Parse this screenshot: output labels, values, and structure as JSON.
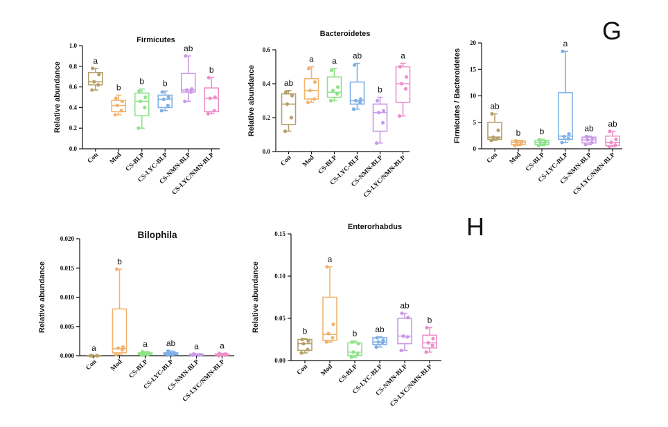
{
  "panel_labels": [
    "G",
    "H"
  ],
  "group_colors": [
    "#b5a16a",
    "#f2b36f",
    "#8fe38a",
    "#7fb0e6",
    "#c99ae6",
    "#ee8fc9"
  ],
  "chart_data": [
    {
      "type": "box",
      "title": "Firmicutes",
      "ylabel": "Relative abundance",
      "ylim": [
        0,
        1.0
      ],
      "yticks": [
        "0.0",
        "0.2",
        "0.4",
        "0.6",
        "0.8",
        "1.0"
      ],
      "categories": [
        "Con",
        "Mod",
        "CS-BLP",
        "CS-LYC-BLP",
        "CS-NMN-BLP",
        "CS-LYC/NMN-BLP"
      ],
      "significance": [
        "a",
        "b",
        "b",
        "b",
        "ab",
        "b"
      ],
      "boxes": [
        {
          "min": 0.57,
          "q1": 0.62,
          "median": 0.65,
          "q3": 0.74,
          "max": 0.78,
          "points": [
            0.57,
            0.62,
            0.65,
            0.72,
            0.78
          ]
        },
        {
          "min": 0.33,
          "q1": 0.36,
          "median": 0.42,
          "q3": 0.47,
          "max": 0.52,
          "points": [
            0.33,
            0.37,
            0.42,
            0.46,
            0.49
          ]
        },
        {
          "min": 0.2,
          "q1": 0.32,
          "median": 0.46,
          "q3": 0.54,
          "max": 0.58,
          "points": [
            0.2,
            0.4,
            0.46,
            0.5,
            0.56
          ]
        },
        {
          "min": 0.37,
          "q1": 0.4,
          "median": 0.48,
          "q3": 0.52,
          "max": 0.56,
          "points": [
            0.37,
            0.42,
            0.48,
            0.5,
            0.55
          ]
        },
        {
          "min": 0.46,
          "q1": 0.55,
          "median": 0.57,
          "q3": 0.73,
          "max": 0.9,
          "points": [
            0.46,
            0.55,
            0.57,
            0.58,
            0.9
          ]
        },
        {
          "min": 0.34,
          "q1": 0.36,
          "median": 0.49,
          "q3": 0.59,
          "max": 0.69,
          "points": [
            0.34,
            0.37,
            0.49,
            0.5,
            0.69
          ]
        }
      ]
    },
    {
      "type": "box",
      "title": "Bacteroidetes",
      "ylabel": "Relative abundance",
      "ylim": [
        0,
        0.6
      ],
      "yticks": [
        "0.0",
        "0.2",
        "0.4",
        "0.6"
      ],
      "categories": [
        "Con",
        "Mod",
        "CS-BLP",
        "CS-LYC-BLP",
        "CS-NMN-BLP",
        "CS-LYC/NMN-BLP"
      ],
      "significance": [
        "ab",
        "a",
        "a",
        "ab",
        "b",
        "a"
      ],
      "boxes": [
        {
          "min": 0.12,
          "q1": 0.16,
          "median": 0.28,
          "q3": 0.34,
          "max": 0.36,
          "points": [
            0.12,
            0.2,
            0.28,
            0.33,
            0.35
          ]
        },
        {
          "min": 0.29,
          "q1": 0.31,
          "median": 0.36,
          "q3": 0.43,
          "max": 0.5,
          "points": [
            0.29,
            0.31,
            0.36,
            0.41,
            0.49
          ]
        },
        {
          "min": 0.3,
          "q1": 0.32,
          "median": 0.35,
          "q3": 0.44,
          "max": 0.49,
          "points": [
            0.3,
            0.34,
            0.36,
            0.38,
            0.48
          ]
        },
        {
          "min": 0.25,
          "q1": 0.28,
          "median": 0.3,
          "q3": 0.41,
          "max": 0.52,
          "points": [
            0.25,
            0.29,
            0.3,
            0.31,
            0.51
          ]
        },
        {
          "min": 0.05,
          "q1": 0.12,
          "median": 0.23,
          "q3": 0.28,
          "max": 0.32,
          "points": [
            0.05,
            0.17,
            0.23,
            0.24,
            0.3
          ]
        },
        {
          "min": 0.21,
          "q1": 0.29,
          "median": 0.4,
          "q3": 0.5,
          "max": 0.52,
          "points": [
            0.21,
            0.37,
            0.4,
            0.44,
            0.5
          ]
        }
      ]
    },
    {
      "type": "box",
      "title": "",
      "ylabel": "Firmicutes / Bacteroidetes",
      "ylim": [
        0,
        20
      ],
      "yticks": [
        "0",
        "5",
        "10",
        "15",
        "20"
      ],
      "categories": [
        "Con",
        "Mod",
        "CS-BLP",
        "CS-LYC-BLP",
        "CS-NMN-BLP",
        "CS-LYC/NMN-BLP"
      ],
      "significance": [
        "ab",
        "b",
        "b",
        "a",
        "ab",
        "ab"
      ],
      "boxes": [
        {
          "min": 1.6,
          "q1": 1.8,
          "median": 2.2,
          "q3": 5.0,
          "max": 6.6,
          "points": [
            1.6,
            2.0,
            2.2,
            3.5,
            6.6
          ]
        },
        {
          "min": 0.6,
          "q1": 0.8,
          "median": 1.2,
          "q3": 1.5,
          "max": 1.6,
          "points": [
            0.6,
            0.9,
            1.2,
            1.4,
            1.5
          ]
        },
        {
          "min": 0.6,
          "q1": 0.8,
          "median": 1.2,
          "q3": 1.6,
          "max": 1.8,
          "points": [
            0.6,
            0.9,
            1.2,
            1.4,
            1.7
          ]
        },
        {
          "min": 1.2,
          "q1": 1.8,
          "median": 2.4,
          "q3": 10.6,
          "max": 18.4,
          "points": [
            1.2,
            1.9,
            2.3,
            2.8,
            18.4
          ]
        },
        {
          "min": 0.8,
          "q1": 1.1,
          "median": 1.7,
          "q3": 2.2,
          "max": 2.4,
          "points": [
            0.8,
            1.2,
            1.7,
            1.9,
            2.3
          ]
        },
        {
          "min": 0.4,
          "q1": 0.6,
          "median": 1.2,
          "q3": 2.4,
          "max": 3.3,
          "points": [
            0.4,
            0.7,
            1.2,
            1.8,
            3.3
          ]
        }
      ]
    },
    {
      "type": "box",
      "title": "Bilophila",
      "ylabel": "Relative abundance",
      "ylim": [
        0,
        0.02
      ],
      "yticks": [
        "0.000",
        "0.005",
        "0.010",
        "0.015",
        "0.020"
      ],
      "categories": [
        "Con",
        "Mod",
        "CS-BLP",
        "CS-LYC-BLP",
        "CS-NMN-BLP",
        "CS-LYC/NMN-BLP"
      ],
      "significance": [
        "a",
        "b",
        "a",
        "ab",
        "a",
        "a"
      ],
      "boxes": [
        {
          "min": 0.0,
          "q1": 0.0,
          "median": 0.0,
          "q3": 0.0,
          "max": 0.0,
          "points": [
            0.0,
            0.0,
            0.0,
            0.0,
            0.0
          ]
        },
        {
          "min": 0.0002,
          "q1": 0.0005,
          "median": 0.0012,
          "q3": 0.008,
          "max": 0.0148,
          "points": [
            0.0002,
            0.001,
            0.0013,
            0.0015,
            0.0148
          ]
        },
        {
          "min": 0.0001,
          "q1": 0.0002,
          "median": 0.0003,
          "q3": 0.0005,
          "max": 0.0007,
          "points": [
            0.0001,
            0.0002,
            0.0003,
            0.0005,
            0.0007
          ]
        },
        {
          "min": 0.0001,
          "q1": 0.0002,
          "median": 0.0004,
          "q3": 0.0005,
          "max": 0.0008,
          "points": [
            0.0001,
            0.0003,
            0.0004,
            0.0005,
            0.0008
          ]
        },
        {
          "min": 0.0001,
          "q1": 0.0001,
          "median": 0.0002,
          "q3": 0.0003,
          "max": 0.0003,
          "points": [
            0.0001,
            0.0001,
            0.0002,
            0.0002,
            0.0003
          ]
        },
        {
          "min": 0.0,
          "q1": 0.0001,
          "median": 0.0002,
          "q3": 0.0003,
          "max": 0.0004,
          "points": [
            0.0,
            0.0001,
            0.0002,
            0.0003,
            0.0004
          ]
        }
      ]
    },
    {
      "type": "box",
      "title": "Enterorhabdus",
      "ylabel": "Relative abundance",
      "ylim": [
        0,
        0.15
      ],
      "yticks": [
        "0.00",
        "0.05",
        "0.10",
        "0.15"
      ],
      "categories": [
        "Con",
        "Mod",
        "CS-BLP",
        "CS-LYC-BLP",
        "CS-NMN-BLP",
        "CS-LYC/NMN-BLP"
      ],
      "significance": [
        "b",
        "a",
        "b",
        "ab",
        "ab",
        "b"
      ],
      "boxes": [
        {
          "min": 0.009,
          "q1": 0.012,
          "median": 0.02,
          "q3": 0.025,
          "max": 0.026,
          "points": [
            0.009,
            0.013,
            0.02,
            0.023,
            0.025
          ]
        },
        {
          "min": 0.022,
          "q1": 0.024,
          "median": 0.031,
          "q3": 0.075,
          "max": 0.111,
          "points": [
            0.022,
            0.027,
            0.032,
            0.043,
            0.111
          ]
        },
        {
          "min": 0.004,
          "q1": 0.006,
          "median": 0.01,
          "q3": 0.021,
          "max": 0.023,
          "points": [
            0.004,
            0.008,
            0.01,
            0.02,
            0.022
          ]
        },
        {
          "min": 0.016,
          "q1": 0.019,
          "median": 0.022,
          "q3": 0.027,
          "max": 0.028,
          "points": [
            0.016,
            0.021,
            0.022,
            0.024,
            0.027
          ]
        },
        {
          "min": 0.012,
          "q1": 0.02,
          "median": 0.029,
          "q3": 0.05,
          "max": 0.056,
          "points": [
            0.012,
            0.028,
            0.029,
            0.051,
            0.056
          ]
        },
        {
          "min": 0.01,
          "q1": 0.015,
          "median": 0.021,
          "q3": 0.03,
          "max": 0.039,
          "points": [
            0.01,
            0.018,
            0.021,
            0.026,
            0.039
          ]
        }
      ]
    }
  ]
}
